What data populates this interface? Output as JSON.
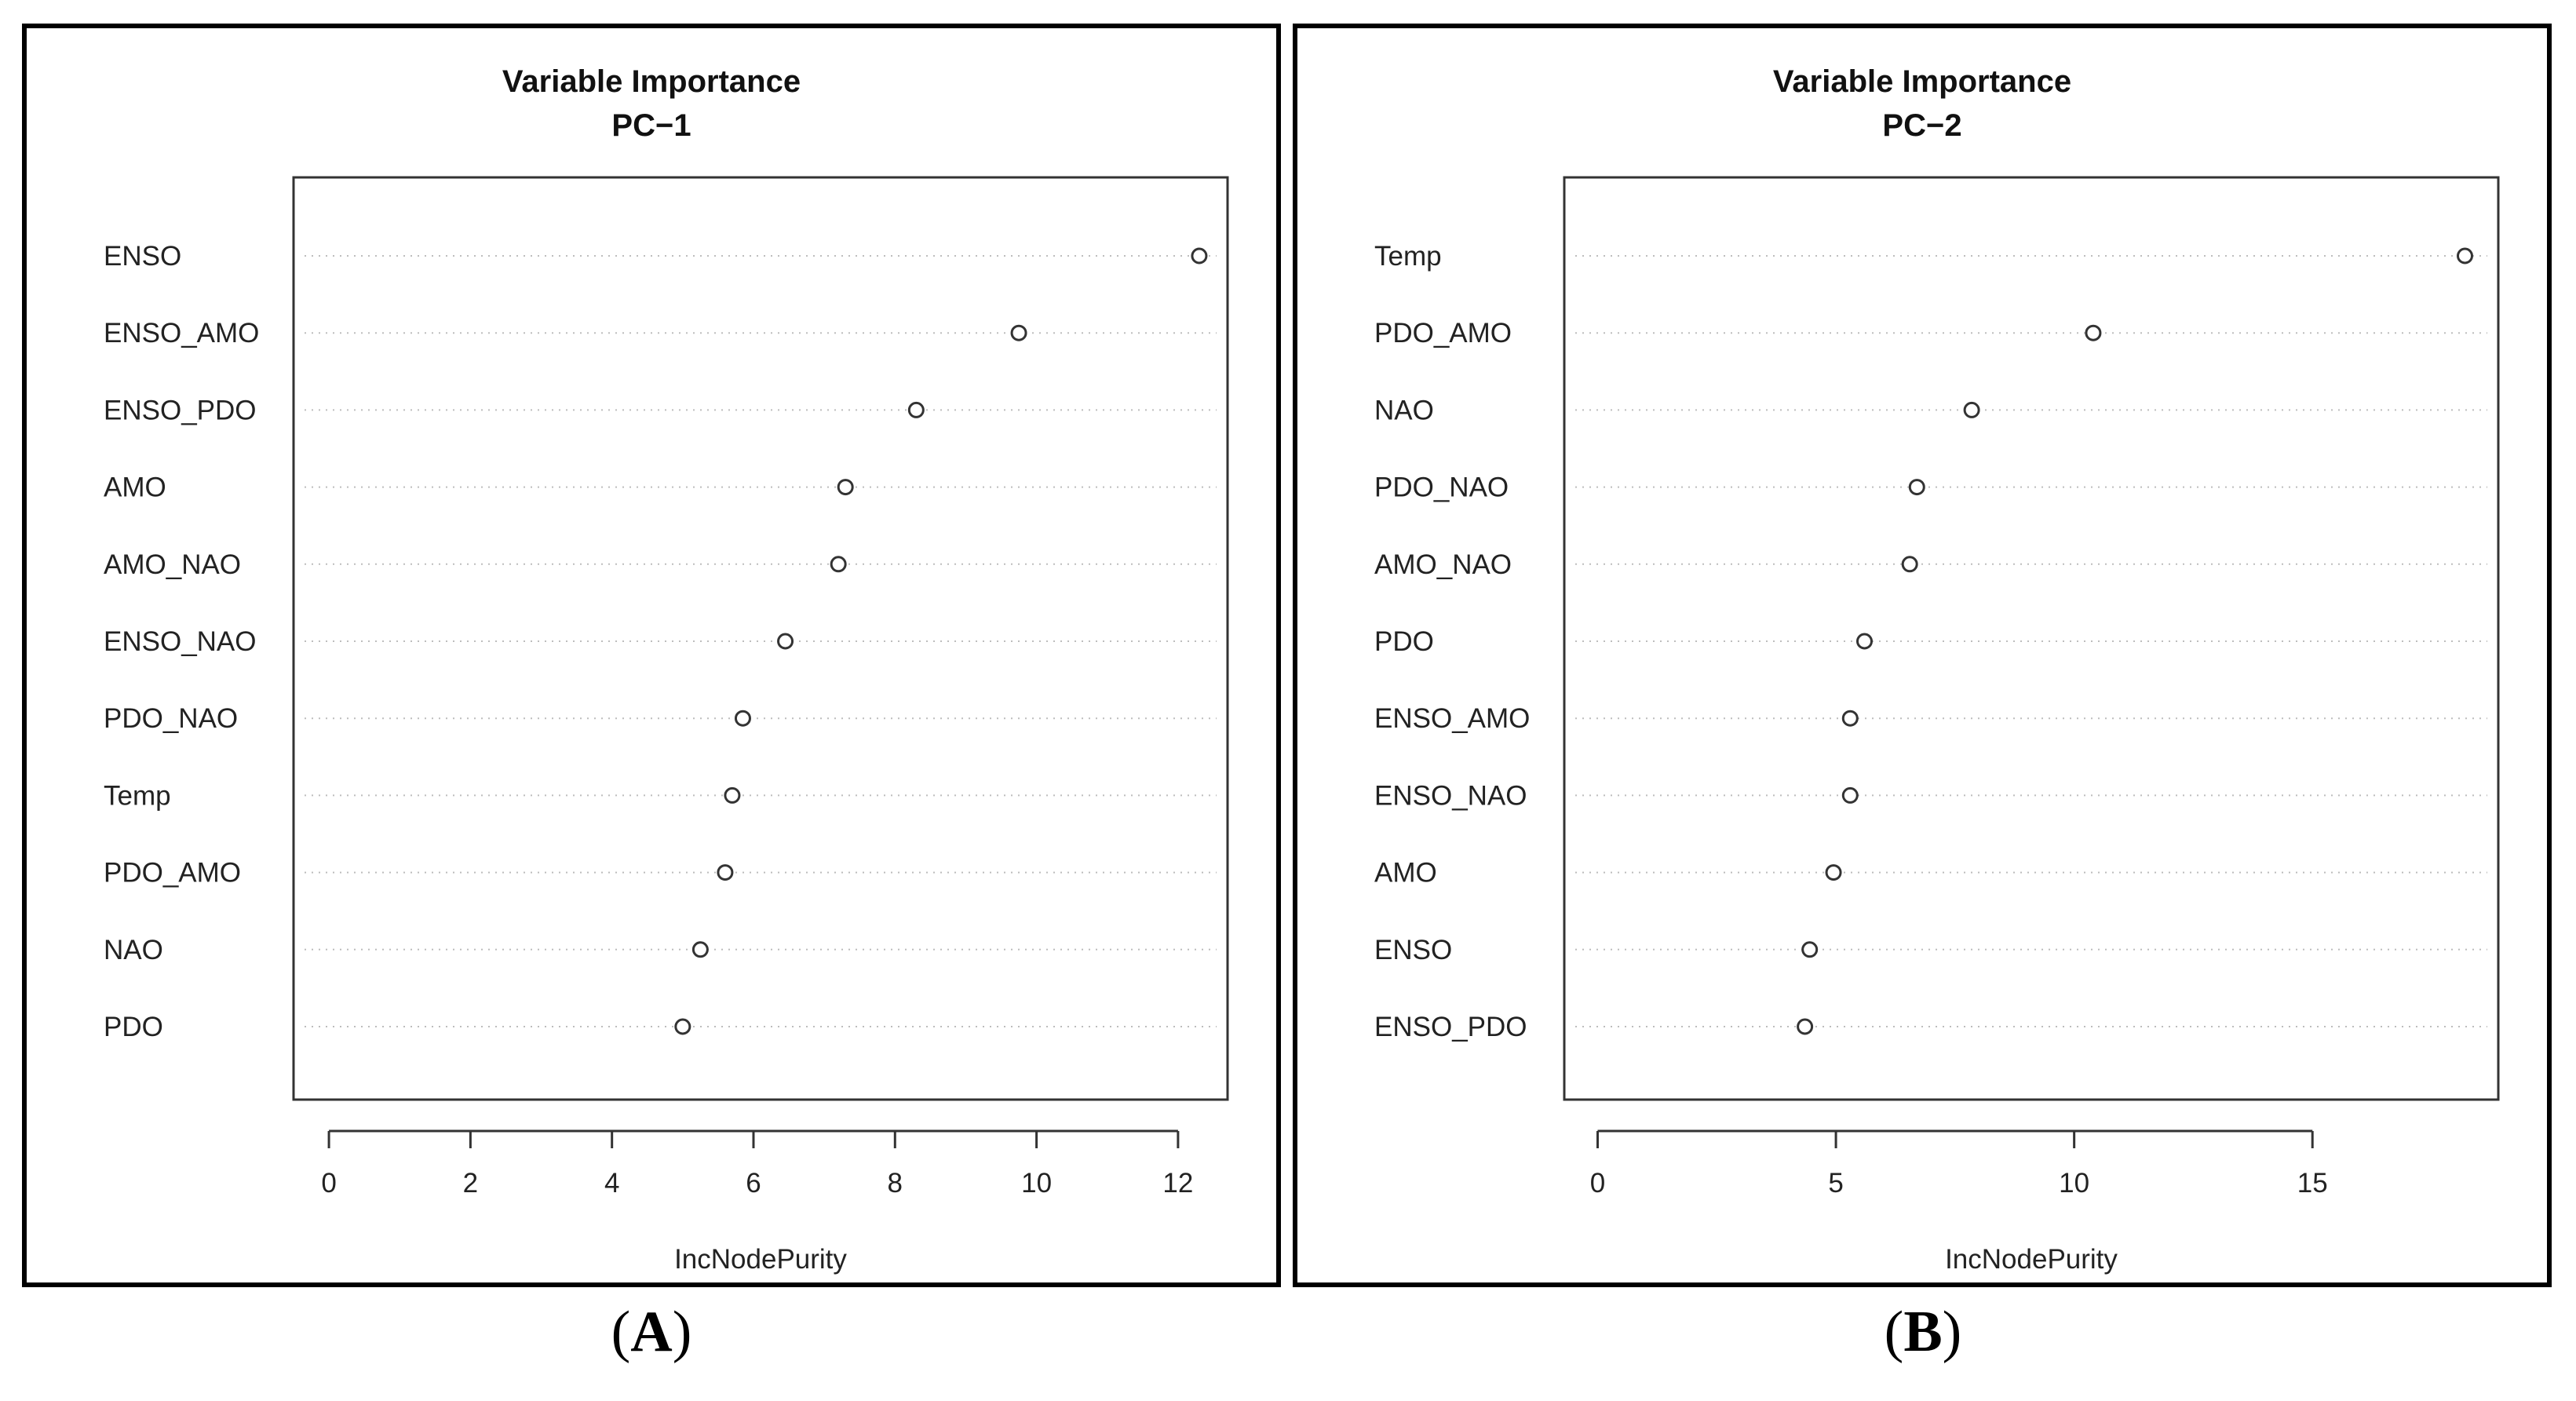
{
  "chart_data": [
    {
      "type": "scatter",
      "title": "Variable Importance",
      "subtitle": "PC−1",
      "xlabel": "IncNodePurity",
      "ylabel": "",
      "xlim": [
        -0.5,
        12.7
      ],
      "xticks": [
        "0",
        "2",
        "4",
        "6",
        "8",
        "10",
        "12"
      ],
      "xtick_values": [
        0,
        2,
        4,
        6,
        8,
        10,
        12
      ],
      "grid": "dotted horizontal",
      "categories": [
        "ENSO",
        "ENSO_AMO",
        "ENSO_PDO",
        "AMO",
        "AMO_NAO",
        "ENSO_NAO",
        "PDO_NAO",
        "Temp",
        "PDO_AMO",
        "NAO",
        "PDO"
      ],
      "values": [
        12.3,
        9.75,
        8.3,
        7.3,
        7.2,
        6.45,
        5.85,
        5.7,
        5.6,
        5.25,
        5.0
      ]
    },
    {
      "type": "scatter",
      "title": "Variable Importance",
      "subtitle": "PC−2",
      "xlabel": "IncNodePurity",
      "ylabel": "",
      "xlim": [
        -0.7,
        18.9
      ],
      "xticks": [
        "0",
        "5",
        "10",
        "15"
      ],
      "xtick_values": [
        0,
        5,
        10,
        15
      ],
      "grid": "dotted horizontal",
      "categories": [
        "Temp",
        "PDO_AMO",
        "NAO",
        "PDO_NAO",
        "AMO_NAO",
        "PDO",
        "ENSO_AMO",
        "ENSO_NAO",
        "AMO",
        "ENSO",
        "ENSO_PDO"
      ],
      "values": [
        18.2,
        10.4,
        7.85,
        6.7,
        6.55,
        5.6,
        5.3,
        5.3,
        4.95,
        4.45,
        4.35
      ]
    }
  ],
  "panel_labels": [
    "A",
    "B"
  ],
  "colors": {
    "axis": "#333333",
    "grid": "#bdbdbd",
    "point": "#333333",
    "text": "#222222"
  }
}
